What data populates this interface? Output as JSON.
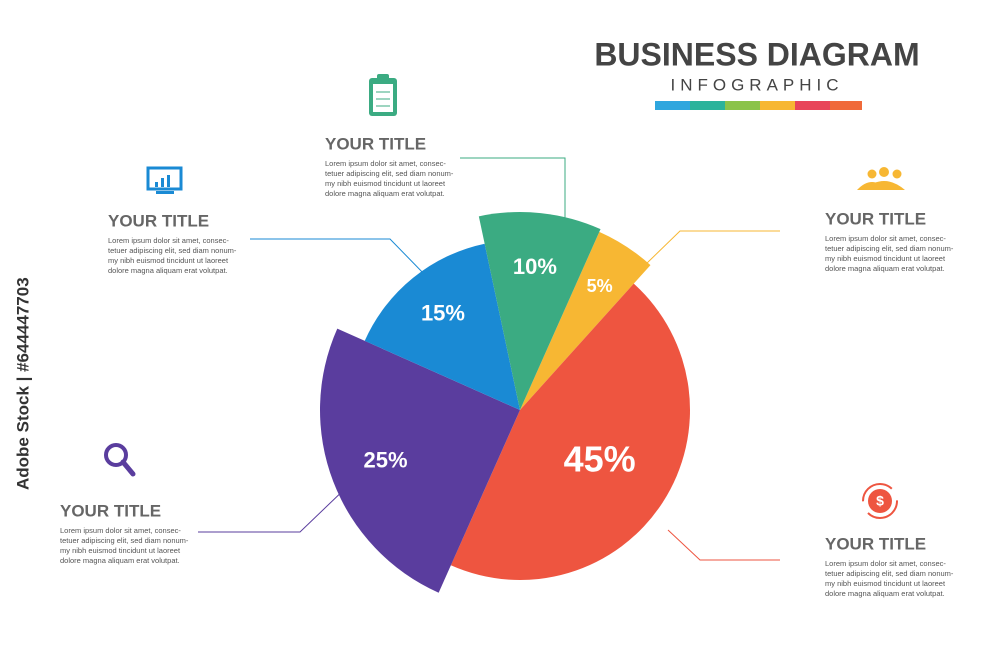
{
  "chart_data": {
    "type": "pie",
    "title": "BUSINESS DIAGRAM",
    "subtitle": "INFOGRAPHIC",
    "values": [
      5,
      45,
      25,
      15,
      10
    ],
    "value_labels": [
      "5%",
      "45%",
      "25%",
      "15%",
      "10%"
    ],
    "colors": [
      "#f7b733",
      "#ee5540",
      "#5a3d9e",
      "#1a8ad4",
      "#3bab82"
    ]
  },
  "callouts": [
    {
      "title": "YOUR TITLE",
      "lines": [
        "Lorem ipsum dolor sit amet, consec-",
        "tetuer adipiscing elit, sed diam nonum-",
        "my nibh euismod tincidunt ut laoreet",
        "dolore magna aliquam erat volutpat."
      ]
    },
    {
      "title": "YOUR TITLE",
      "lines": [
        "Lorem ipsum dolor sit amet, consec-",
        "tetuer adipiscing elit, sed diam nonum-",
        "my nibh euismod tincidunt ut laoreet",
        "dolore magna aliquam erat volutpat."
      ]
    },
    {
      "title": "YOUR TITLE",
      "lines": [
        "Lorem ipsum dolor sit amet, consec-",
        "tetuer adipiscing elit, sed diam nonum-",
        "my nibh euismod tincidunt ut laoreet",
        "dolore magna aliquam erat volutpat."
      ]
    },
    {
      "title": "YOUR TITLE",
      "lines": [
        "Lorem ipsum dolor sit amet, consec-",
        "tetuer adipiscing elit, sed diam nonum-",
        "my nibh euismod tincidunt ut laoreet",
        "dolore magna aliquam erat volutpat."
      ]
    },
    {
      "title": "YOUR TITLE",
      "lines": [
        "Lorem ipsum dolor sit amet, consec-",
        "tetuer adipiscing elit, sed diam nonum-",
        "my nibh euismod tincidunt ut laoreet",
        "dolore magna aliquam erat volutpat."
      ]
    }
  ],
  "watermark": "Adobe Stock | #644447703"
}
